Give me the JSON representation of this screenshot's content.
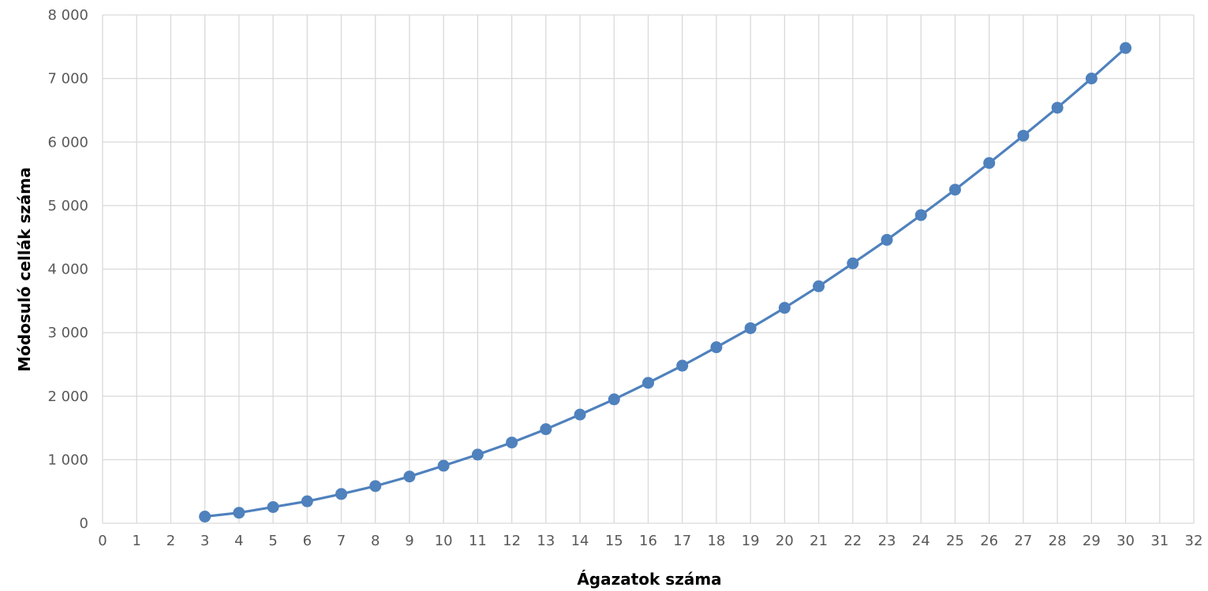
{
  "chart_data": {
    "type": "line",
    "title": "",
    "xlabel": "Ágazatok száma",
    "ylabel": "Módosuló cellák száma",
    "xlim": [
      0,
      32
    ],
    "ylim": [
      0,
      8000
    ],
    "x_ticks": [
      0,
      1,
      2,
      3,
      4,
      5,
      6,
      7,
      8,
      9,
      10,
      11,
      12,
      13,
      14,
      15,
      16,
      17,
      18,
      19,
      20,
      21,
      22,
      23,
      24,
      25,
      26,
      27,
      28,
      29,
      30,
      31,
      32
    ],
    "y_ticks": [
      {
        "value": 0,
        "label": "0"
      },
      {
        "value": 1000,
        "label": "1 000"
      },
      {
        "value": 2000,
        "label": "2 000"
      },
      {
        "value": 3000,
        "label": "3 000"
      },
      {
        "value": 4000,
        "label": "4 000"
      },
      {
        "value": 5000,
        "label": "5 000"
      },
      {
        "value": 6000,
        "label": "6 000"
      },
      {
        "value": 7000,
        "label": "7 000"
      },
      {
        "value": 8000,
        "label": "8 000"
      }
    ],
    "grid": true,
    "legend": "none",
    "series": [
      {
        "color": "#4f81bd",
        "x": [
          3,
          4,
          5,
          6,
          7,
          8,
          9,
          10,
          11,
          12,
          13,
          14,
          15,
          16,
          17,
          18,
          19,
          20,
          21,
          22,
          23,
          24,
          25,
          26,
          27,
          28,
          29,
          30
        ],
        "y": [
          105,
          165,
          255,
          345,
          460,
          585,
          735,
          905,
          1080,
          1270,
          1480,
          1710,
          1950,
          2210,
          2480,
          2770,
          3070,
          3390,
          3730,
          4090,
          4460,
          4850,
          5250,
          5670,
          6100,
          6540,
          7000,
          7480
        ]
      }
    ]
  }
}
